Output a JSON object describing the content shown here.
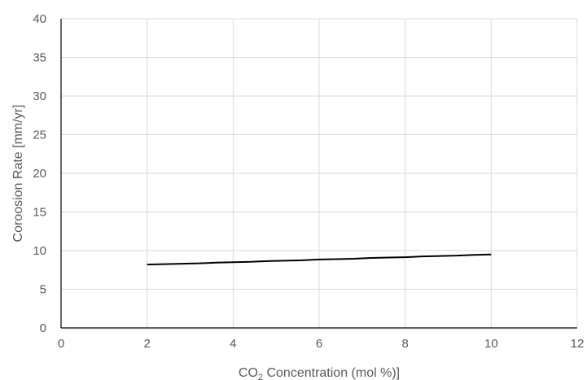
{
  "chart_data": {
    "type": "line",
    "xlabel_prefix": "CO",
    "xlabel_subscript": "2",
    "xlabel_suffix": " Concentration (mol %)]",
    "ylabel": "Coroosion Rate [mm/yr]",
    "xlim": [
      0,
      12
    ],
    "ylim": [
      0,
      40
    ],
    "xticks": [
      0,
      2,
      4,
      6,
      8,
      10,
      12
    ],
    "yticks": [
      0,
      5,
      10,
      15,
      20,
      25,
      30,
      35,
      40
    ],
    "grid": true,
    "legend": "none",
    "series": [
      {
        "color": "#000000",
        "x": [
          2.0,
          2.4,
          2.8,
          3.2,
          3.6,
          4.0,
          4.4,
          4.8,
          5.2,
          5.6,
          6.0,
          6.4,
          6.8,
          7.2,
          7.6,
          8.0,
          8.4,
          8.8,
          9.2,
          9.6,
          10.0
        ],
        "y": [
          8.2,
          8.25,
          8.3,
          8.35,
          8.45,
          8.5,
          8.55,
          8.65,
          8.7,
          8.75,
          8.85,
          8.9,
          8.95,
          9.05,
          9.1,
          9.15,
          9.25,
          9.3,
          9.35,
          9.45,
          9.5
        ]
      }
    ]
  }
}
